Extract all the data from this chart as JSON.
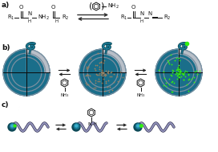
{
  "bg_color": "#ffffff",
  "label_a": "a)",
  "label_b": "b)",
  "label_c": "c)",
  "dark": "#111111",
  "arrow_color": "#333333",
  "teal_dark": "#0d4a58",
  "teal_mid": "#1a7a96",
  "teal_light": "#3ab0cc",
  "green_dot": "#33ee11",
  "gray_wedge1": "#b8bfc8",
  "gray_wedge2": "#9098a2",
  "ps_fill": "#1a6e8a",
  "ps_ring": "#7a8fa0",
  "text_color": "#111111",
  "chain_color": "#9090b8",
  "chain_dark": "#202040"
}
